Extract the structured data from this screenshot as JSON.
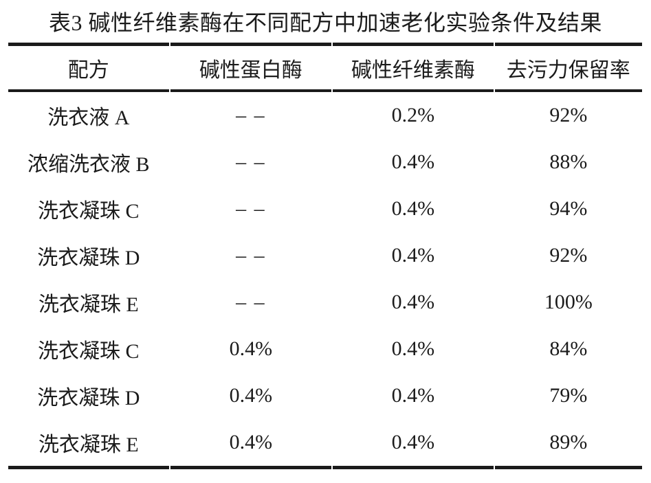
{
  "table": {
    "caption": "表3 碱性纤维素酶在不同配方中加速老化实验条件及结果",
    "columns": [
      "配方",
      "碱性蛋白酶",
      "碱性纤维素酶",
      "去污力保留率"
    ],
    "none_symbol": "– –",
    "rows": [
      {
        "cells": [
          "洗衣液 A",
          "– –",
          "0.2%",
          "92%"
        ]
      },
      {
        "cells": [
          "浓缩洗衣液 B",
          "– –",
          "0.4%",
          "88%"
        ]
      },
      {
        "cells": [
          "洗衣凝珠 C",
          "– –",
          "0.4%",
          "94%"
        ]
      },
      {
        "cells": [
          "洗衣凝珠 D",
          "– –",
          "0.4%",
          "92%"
        ]
      },
      {
        "cells": [
          "洗衣凝珠 E",
          "– –",
          "0.4%",
          "100%"
        ]
      },
      {
        "cells": [
          "洗衣凝珠 C",
          "0.4%",
          "0.4%",
          "84%"
        ]
      },
      {
        "cells": [
          "洗衣凝珠 D",
          "0.4%",
          "0.4%",
          "79%"
        ]
      },
      {
        "cells": [
          "洗衣凝珠 E",
          "0.4%",
          "0.4%",
          "89%"
        ]
      }
    ]
  },
  "colors": {
    "background": "#ffffff",
    "text": "#1b1b1b",
    "rule": "#1a1a1a"
  }
}
